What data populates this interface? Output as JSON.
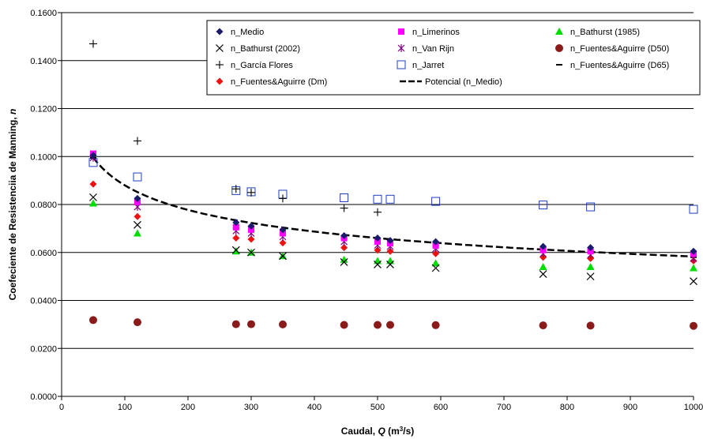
{
  "chart_data": {
    "type": "scatter",
    "xlabel": "Caudal, Q (m3/s)",
    "xlabel_parts": [
      "Caudal, ",
      "Q",
      " (m",
      "3",
      "/s)"
    ],
    "ylabel": "Coefeciente de Resistenciia de Manning, n",
    "ylabel_parts": [
      "Coefeciente de Resistenciia de Manning, ",
      "n"
    ],
    "xlim": [
      0,
      1000
    ],
    "ylim": [
      0,
      0.16
    ],
    "x_ticks": [
      0,
      100,
      200,
      300,
      400,
      500,
      600,
      700,
      800,
      900,
      1000
    ],
    "x_tick_labels": [
      "0",
      "100",
      "200",
      "300",
      "400",
      "500",
      "600",
      "700",
      "800",
      "900",
      "1000"
    ],
    "y_ticks": [
      0,
      0.02,
      0.04,
      0.06,
      0.08,
      0.1,
      0.12,
      0.14,
      0.16
    ],
    "y_tick_labels": [
      "0.0000",
      "0.0200",
      "0.0400",
      "0.0600",
      "0.0800",
      "0.1000",
      "0.1200",
      "0.1400",
      "0.1600"
    ],
    "grid": "horizontal",
    "legend_position": "top-right",
    "x": [
      50,
      120,
      276,
      300,
      350,
      447,
      500,
      520,
      592,
      762,
      837,
      1000
    ],
    "series": [
      {
        "name": "n_Medio",
        "marker": "diamond",
        "color": "#1a1a6e",
        "values": [
          0.1005,
          0.0825,
          0.0725,
          0.071,
          0.0695,
          0.067,
          0.066,
          0.065,
          0.0645,
          0.0625,
          0.062,
          0.0605
        ]
      },
      {
        "name": "n_Limerinos",
        "marker": "square",
        "color": "#ff00ff",
        "values": [
          0.1012,
          0.081,
          0.0705,
          0.0695,
          0.068,
          0.066,
          0.0645,
          0.0638,
          0.0628,
          0.061,
          0.0605,
          0.0595
        ]
      },
      {
        "name": "n_Bathurst (1985)",
        "marker": "triangle",
        "color": "#00dd00",
        "values": [
          0.0805,
          0.068,
          0.0605,
          0.06,
          0.0585,
          0.057,
          0.0565,
          0.0565,
          0.0555,
          0.054,
          0.054,
          0.0535
        ]
      },
      {
        "name": "n_Bathurst (2002)",
        "marker": "x",
        "color": "#000000",
        "values": [
          0.083,
          0.0715,
          0.061,
          0.06,
          0.0585,
          0.056,
          0.055,
          0.055,
          0.0535,
          0.051,
          0.05,
          0.048
        ]
      },
      {
        "name": "n_Van Rijn",
        "marker": "star",
        "color": "#800080",
        "values": [
          0.0995,
          0.079,
          0.069,
          0.068,
          0.0665,
          0.0645,
          0.063,
          0.0625,
          0.0615,
          0.0595,
          0.059,
          0.0575
        ]
      },
      {
        "name": "n_Fuentes&Aguirre (D50)",
        "marker": "circle",
        "color": "#8b1a1a",
        "values": [
          0.0318,
          0.0309,
          0.0301,
          0.0301,
          0.03,
          0.0298,
          0.0298,
          0.0298,
          0.0297,
          0.0296,
          0.0295,
          0.0294
        ]
      },
      {
        "name": "n_García Flores",
        "marker": "plus",
        "color": "#000000",
        "values": [
          0.147,
          0.1065,
          0.0865,
          0.085,
          0.0825,
          0.0785,
          0.0768,
          null,
          null,
          null,
          null,
          null
        ]
      },
      {
        "name": "n_Jarret",
        "marker": "open-square",
        "color": "#1f3fbf",
        "values": [
          0.0975,
          0.0915,
          0.0858,
          0.0853,
          0.0843,
          0.0828,
          0.0822,
          0.0822,
          0.0813,
          0.0798,
          0.079,
          0.078
        ]
      },
      {
        "name": "n_Fuentes&Aguirre (D65)",
        "marker": "dash",
        "color": "#000000",
        "values": [
          0.0995,
          0.0825,
          0.0715,
          0.0705,
          0.069,
          0.0665,
          0.0655,
          0.0648,
          0.064,
          0.062,
          0.061,
          0.058
        ]
      },
      {
        "name": "n_Fuentes&Aguirre (Dm)",
        "marker": "diamond",
        "color": "#ee1111",
        "values": [
          0.0885,
          0.075,
          0.066,
          0.0655,
          0.064,
          0.062,
          0.061,
          0.0605,
          0.0595,
          0.058,
          0.0575,
          0.0565
        ]
      },
      {
        "name": "Potencial (n_Medio)",
        "marker": "trendline",
        "color": "#000000",
        "trend": {
          "a": 0.2004,
          "b": -0.1787
        }
      }
    ],
    "legend_order": [
      "n_Medio",
      "n_Limerinos",
      "n_Bathurst (1985)",
      "n_Bathurst (2002)",
      "n_Van Rijn",
      "n_Fuentes&Aguirre (D50)",
      "n_García Flores",
      "n_Jarret",
      "n_Fuentes&Aguirre (D65)",
      "n_Fuentes&Aguirre (Dm)",
      "Potencial (n_Medio)"
    ]
  }
}
